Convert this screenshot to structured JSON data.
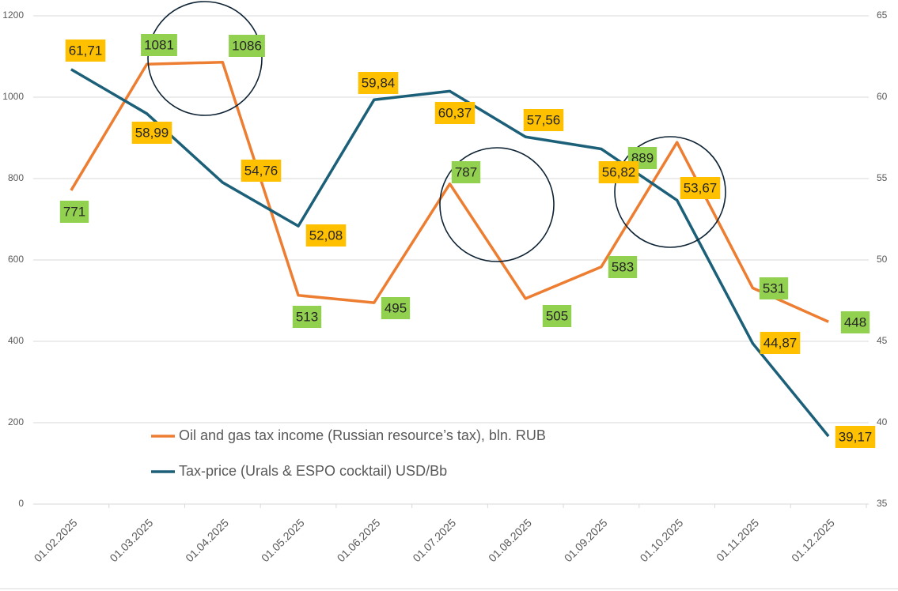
{
  "chart_data": {
    "type": "line",
    "categories": [
      "01.02.2025",
      "01.03.2025",
      "01.04.2025",
      "01.05.2025",
      "01.06.2025",
      "01.07.2025",
      "01.08.2025",
      "01.09.2025",
      "01.10.2025",
      "01.11.2025",
      "01.12.2025"
    ],
    "series": [
      {
        "name": "Oil and gas tax income (Russian resource’s tax), bln. RUB",
        "color": "#ed7d31",
        "values": [
          771,
          1081,
          1086,
          513,
          495,
          787,
          505,
          583,
          889,
          531,
          448
        ]
      },
      {
        "name": "Tax-price (Urals & ESPO cocktail) USD/Bb",
        "color": "#1b5f78",
        "axis": "y2",
        "values": [
          61.71,
          58.99,
          54.76,
          52.08,
          59.84,
          60.37,
          57.56,
          56.82,
          53.67,
          44.87,
          39.17
        ],
        "value_labels": [
          "61,71",
          "58,99",
          "54,76",
          "52,08",
          "59,84",
          "60,37",
          "57,56",
          "56,82",
          "53,67",
          "44,87",
          "39,17"
        ]
      }
    ],
    "ylim": [
      0,
      1200
    ],
    "yticks": [
      0,
      200,
      400,
      600,
      800,
      1000,
      1200
    ],
    "y2lim": [
      35,
      65
    ],
    "y2ticks": [
      35,
      40,
      45,
      50,
      55,
      60,
      65
    ],
    "grid": true
  }
}
